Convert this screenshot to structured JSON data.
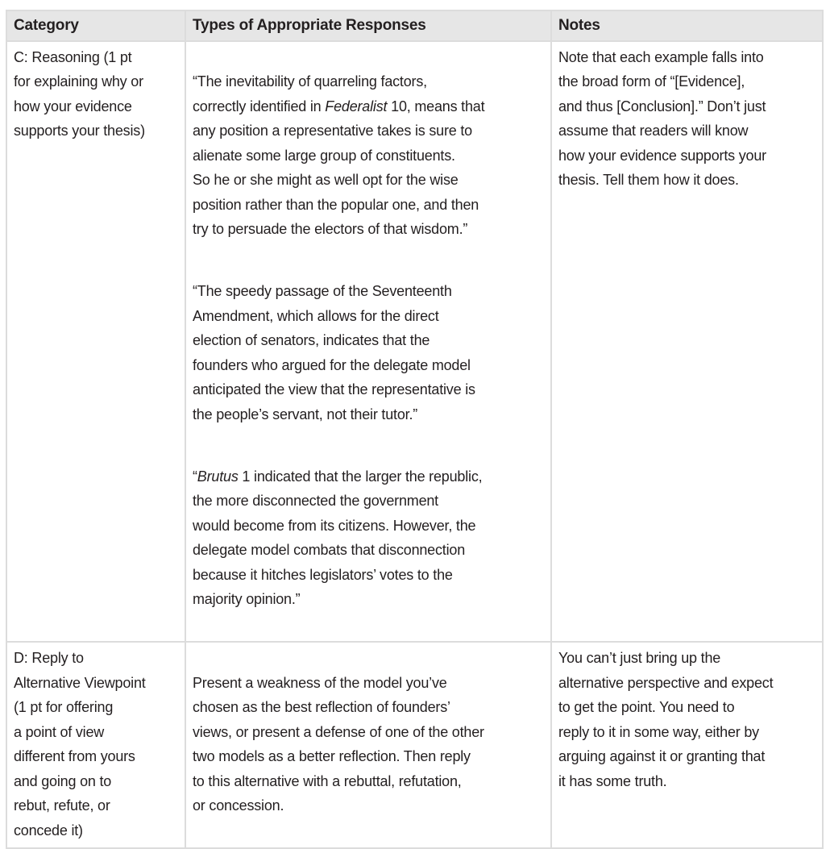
{
  "headers": [
    "Category",
    "Types of Appropriate Responses",
    "Notes"
  ],
  "rows": [
    {
      "category": "C: Reasoning (1 pt\nfor explaining why or\nhow your evidence\nsupports your thesis)",
      "responses": [
        {
          "pre": "“The inevitability of quarreling factors,\ncorrectly identified in ",
          "em": "Federalist",
          "post": " 10, means that\nany position a representative takes is sure to\nalienate some large group of constituents.\nSo he or she might as well opt for the wise\nposition rather than the popular one, and then\ntry to persuade the electors of that wisdom.”"
        },
        {
          "pre": "“The speedy passage of the Seventeenth\nAmendment, which allows for the direct\nelection of senators, indicates that the\nfounders who argued for the delegate model\nanticipated the view that the representative is\nthe people’s servant, not their tutor.”",
          "em": "",
          "post": ""
        },
        {
          "pre": "“",
          "em": "Brutus",
          "post": " 1 indicated that the larger the republic,\nthe more disconnected the government\nwould become from its citizens. However, the\ndelegate model combats that disconnection\nbecause it hitches legislators’ votes to the\nmajority opinion.”"
        }
      ],
      "notes": "Note that each example falls into\nthe broad form of “[Evidence],\nand thus [Conclusion].” Don’t just\nassume that readers will know\nhow your evidence supports your\nthesis. Tell them how it does."
    },
    {
      "category": "D: Reply to\nAlternative Viewpoint\n(1 pt for offering\na point of view\ndifferent from yours\nand going on to\nrebut, refute, or\nconcede it)",
      "responses": [
        {
          "pre": "Present a weakness of the model you’ve\nchosen as the best reflection of founders’\nviews, or present a defense of one of the other\ntwo models as a better reflection. Then reply\nto this alternative with a rebuttal, refutation,\nor concession.",
          "em": "",
          "post": ""
        }
      ],
      "notes": "You can’t just bring up the\nalternative perspective and expect\nto get the point. You need to\nreply to it in some way, either by\narguing against it or granting that\nit has some truth."
    }
  ]
}
